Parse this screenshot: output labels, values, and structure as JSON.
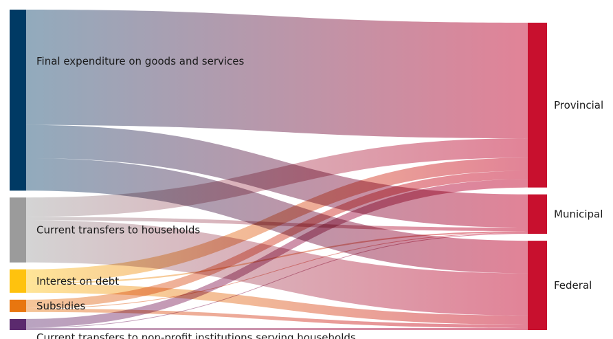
{
  "chart_data": {
    "type": "sankey",
    "title": "",
    "sources": [
      {
        "id": "goods",
        "label": "Final expenditure on goods and services",
        "color": "#003a64"
      },
      {
        "id": "households",
        "label": "Current transfers to households",
        "color": "#9b9b9b"
      },
      {
        "id": "interest",
        "label": "Interest on debt",
        "color": "#ffc20e"
      },
      {
        "id": "subsidies",
        "label": "Subsidies",
        "color": "#e8760f"
      },
      {
        "id": "npish",
        "label": "Current transfers to non-profit institutions serving households",
        "color": "#5b2a6e"
      }
    ],
    "targets": [
      {
        "id": "provincial",
        "label": "Provincial",
        "color": "#c8102e"
      },
      {
        "id": "municipal",
        "label": "Municipal",
        "color": "#c8102e"
      },
      {
        "id": "federal",
        "label": "Federal",
        "color": "#c8102e"
      }
    ],
    "flows": [
      {
        "source": "goods",
        "target": "provincial",
        "value": 167
      },
      {
        "source": "goods",
        "target": "municipal",
        "value": 48
      },
      {
        "source": "goods",
        "target": "federal",
        "value": 47
      },
      {
        "source": "households",
        "target": "provincial",
        "value": 28
      },
      {
        "source": "households",
        "target": "municipal",
        "value": 5
      },
      {
        "source": "households",
        "target": "federal",
        "value": 61
      },
      {
        "source": "interest",
        "target": "provincial",
        "value": 19
      },
      {
        "source": "interest",
        "target": "municipal",
        "value": 2
      },
      {
        "source": "interest",
        "target": "federal",
        "value": 13
      },
      {
        "source": "subsidies",
        "target": "provincial",
        "value": 12
      },
      {
        "source": "subsidies",
        "target": "municipal",
        "value": 1
      },
      {
        "source": "subsidies",
        "target": "federal",
        "value": 5
      },
      {
        "source": "npish",
        "target": "provincial",
        "value": 12
      },
      {
        "source": "npish",
        "target": "municipal",
        "value": 1
      },
      {
        "source": "npish",
        "target": "federal",
        "value": 3
      }
    ],
    "link_end_color": "#d9607a"
  }
}
